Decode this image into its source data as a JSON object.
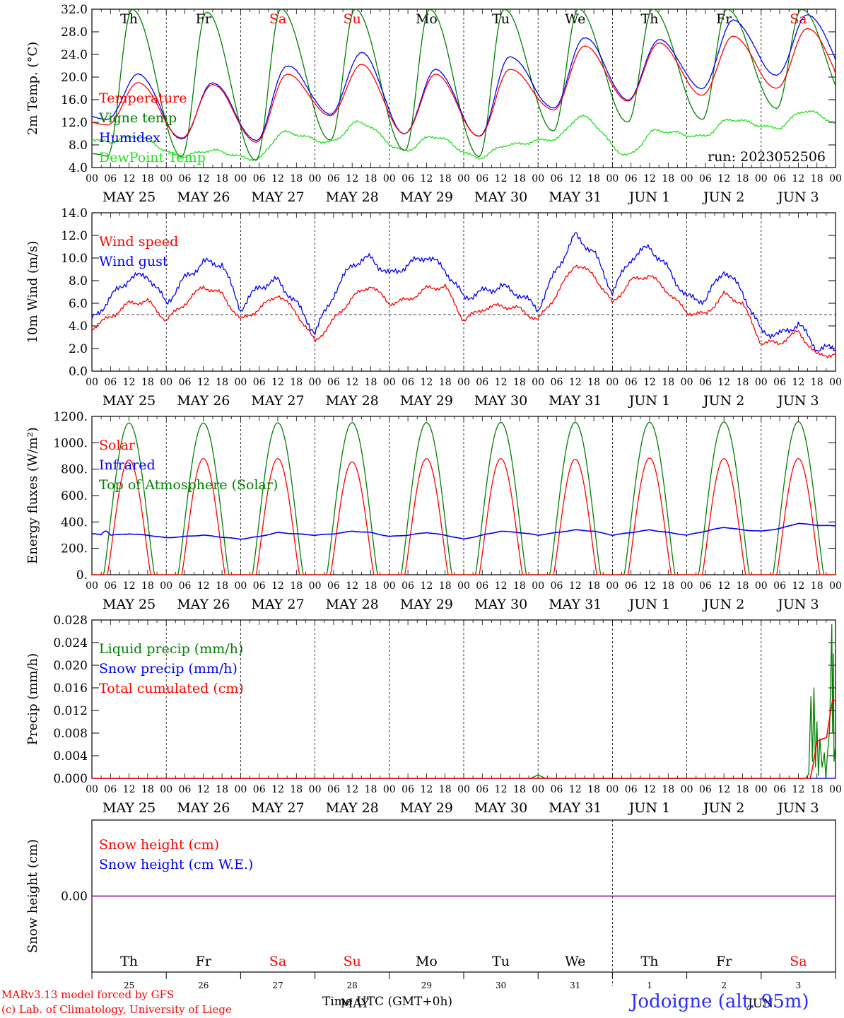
{
  "colors": {
    "red": "#ff0000",
    "green": "#008000",
    "blue": "#0000ff",
    "lightgreen": "#20e020",
    "purple": "#800080",
    "black": "#000000"
  },
  "day_headers": [
    "Th",
    "Fr",
    "Sa",
    "Su",
    "Mo",
    "Tu",
    "We",
    "Th",
    "Fr",
    "Sa"
  ],
  "day_header_colors": [
    "#000000",
    "#000000",
    "#ff0000",
    "#ff0000",
    "#000000",
    "#000000",
    "#000000",
    "#000000",
    "#000000",
    "#ff0000"
  ],
  "hour_labels": [
    "00",
    "06",
    "12",
    "18"
  ],
  "date_labels": [
    "MAY 25",
    "MAY 26",
    "MAY 27",
    "MAY 28",
    "MAY 29",
    "MAY 30",
    "MAY 31",
    "JUN  1",
    "JUN  2",
    "JUN  3"
  ],
  "last_hour_label": "00",
  "snow_panel_days": [
    "25",
    "26",
    "27",
    "28",
    "29",
    "30",
    "31",
    "1",
    "2",
    "3"
  ],
  "snow_axis_month_may": "MAY",
  "snow_axis_month_jun": "JUN",
  "footer": {
    "model": "MARv3.13 model forced by GFS",
    "copyright": "(c) Lab. of Climatology, University of Liege",
    "time_label": "Time UTC (GMT+0h)",
    "station": "Jodoigne (alt. 95m)"
  },
  "chart_data": [
    {
      "type": "line",
      "ylabel": "2m Temp. (°C)",
      "ylim": [
        4,
        32
      ],
      "yticks": [
        "4.0",
        "8.0",
        "12.0",
        "16.0",
        "20.0",
        "24.0",
        "28.0",
        "32.0"
      ],
      "run_label": "run: 2023052506",
      "series": [
        {
          "name": "Temperature",
          "color": "#ff0000",
          "daily_min": [
            11.5,
            9.2,
            8.5,
            13.2,
            10.0,
            9.5,
            14.2,
            15.8,
            16.8,
            18.0
          ],
          "daily_max": [
            19.0,
            18.7,
            20.5,
            22.2,
            20.5,
            21.4,
            25.5,
            26.0,
            27.2,
            28.6
          ]
        },
        {
          "name": "Vigne temp",
          "color": "#008000",
          "daily_min": [
            6.0,
            6.0,
            5.3,
            8.8,
            7.0,
            6.0,
            10.5,
            12.0,
            12.5,
            14.5
          ],
          "daily_max": [
            32.0,
            31.5,
            32.0,
            32.0,
            32.0,
            32.0,
            32.0,
            32.0,
            32.0,
            32.0
          ]
        },
        {
          "name": "Humidex",
          "color": "#0000ff",
          "daily_min": [
            12.5,
            9.0,
            8.8,
            13.5,
            10.0,
            9.5,
            14.5,
            16.0,
            18.0,
            20.3
          ],
          "daily_max": [
            20.5,
            19.0,
            22.0,
            24.3,
            21.3,
            23.6,
            27.0,
            26.6,
            30.0,
            31.0
          ]
        },
        {
          "name": "DewPoint Temp",
          "color": "#20e020",
          "daily_min": [
            8.5,
            6.0,
            5.5,
            8.5,
            7.0,
            5.8,
            9.0,
            6.2,
            9.5,
            11.0
          ],
          "daily_max": [
            9.5,
            7.0,
            10.2,
            12.0,
            9.5,
            8.0,
            13.0,
            10.5,
            12.5,
            14.0
          ]
        }
      ]
    },
    {
      "type": "line",
      "ylabel": "10m Wind (m/s)",
      "ylim": [
        0,
        14
      ],
      "yticks": [
        "0.0",
        "2.0",
        "4.0",
        "6.0",
        "8.0",
        "10.0",
        "12.0",
        "14.0"
      ],
      "reference_line": 5.0,
      "series": [
        {
          "name": "Wind speed",
          "color": "#ff0000",
          "six_hourly": [
            3.8,
            4.8,
            6.0,
            6.2,
            4.5,
            6.0,
            7.5,
            6.8,
            4.5,
            5.5,
            6.8,
            5.2,
            2.6,
            4.5,
            6.5,
            7.6,
            6.0,
            6.3,
            7.3,
            7.5,
            4.5,
            5.5,
            5.8,
            5.5,
            4.5,
            6.8,
            9.5,
            8.5,
            6.0,
            8.0,
            8.5,
            7.0,
            5.2,
            5.0,
            6.8,
            6.0,
            2.5,
            2.5,
            3.5,
            1.4,
            1.5
          ]
        },
        {
          "name": "Wind gust",
          "color": "#0000ff",
          "six_hourly": [
            4.5,
            6.5,
            8.2,
            8.5,
            6.0,
            8.2,
            9.6,
            9.5,
            5.5,
            7.5,
            8.0,
            6.0,
            3.4,
            6.8,
            9.5,
            10.0,
            8.5,
            9.4,
            10.2,
            9.0,
            6.5,
            7.0,
            7.5,
            6.8,
            5.5,
            9.0,
            12.0,
            10.5,
            7.0,
            10.0,
            11.0,
            9.0,
            6.5,
            6.3,
            9.0,
            7.0,
            3.5,
            3.2,
            4.2,
            2.0,
            2.0
          ]
        }
      ]
    },
    {
      "type": "line",
      "ylabel": "Energy fluxes (W/m²)",
      "ylim": [
        0,
        1200
      ],
      "yticks": [
        "0.",
        "200.",
        "400.",
        "600.",
        "800.",
        "1000.",
        "1200."
      ],
      "series": [
        {
          "name": "Solar",
          "color": "#ff0000",
          "daily_peak": [
            870,
            880,
            880,
            855,
            880,
            880,
            875,
            885,
            880,
            880
          ]
        },
        {
          "name": "Infrared",
          "color": "#0000ff",
          "six_hourly": [
            310,
            300,
            310,
            300,
            280,
            290,
            300,
            285,
            270,
            290,
            320,
            310,
            300,
            310,
            330,
            320,
            290,
            300,
            320,
            300,
            270,
            300,
            330,
            320,
            300,
            320,
            340,
            330,
            300,
            320,
            340,
            320,
            300,
            330,
            360,
            340,
            330,
            350,
            390,
            375,
            370
          ]
        },
        {
          "name": "Top of Atmosphere (Solar)",
          "color": "#008000",
          "daily_peak": [
            1150,
            1150,
            1152,
            1153,
            1153,
            1155,
            1155,
            1155,
            1158,
            1160
          ]
        }
      ]
    },
    {
      "type": "line",
      "ylabel": "Precip (mm/h)",
      "ylim": [
        0,
        0.028
      ],
      "yticks": [
        "0.000",
        "0.004",
        "0.008",
        "0.012",
        "0.016",
        "0.020",
        "0.024",
        "0.028"
      ],
      "series": [
        {
          "name": "Liquid precip (mm/h)",
          "color": "#008000",
          "points": [
            [
              5.9,
              0.0
            ],
            [
              6.0,
              0.0006
            ],
            [
              6.1,
              0.0
            ],
            [
              9.6,
              0.0
            ],
            [
              9.64,
              0.0008
            ],
            [
              9.67,
              0.0145
            ],
            [
              9.69,
              0.003
            ],
            [
              9.71,
              0.016
            ],
            [
              9.73,
              0.002
            ],
            [
              9.75,
              0.01
            ],
            [
              9.77,
              0.0005
            ],
            [
              9.79,
              0.007
            ],
            [
              9.82,
              0.002
            ],
            [
              9.85,
              0.0045
            ],
            [
              9.87,
              0.0
            ],
            [
              9.89,
              0.004
            ],
            [
              9.92,
              0.0085
            ],
            [
              9.94,
              0.0205
            ],
            [
              9.95,
              0.0272
            ],
            [
              9.96,
              0.008
            ],
            [
              9.97,
              0.022
            ],
            [
              9.98,
              0.003
            ],
            [
              10.0,
              0.006
            ]
          ]
        },
        {
          "name": "Snow precip (mm/h)",
          "color": "#0000ff",
          "points": [
            [
              0,
              0
            ],
            [
              10,
              0
            ]
          ]
        },
        {
          "name": "Total cumulated (cm)",
          "color": "#ff0000",
          "points": [
            [
              0,
              0
            ],
            [
              9.66,
              0
            ],
            [
              9.7,
              0.0025
            ],
            [
              9.75,
              0.0065
            ],
            [
              9.83,
              0.007
            ],
            [
              9.88,
              0.0072
            ],
            [
              9.93,
              0.0115
            ],
            [
              9.96,
              0.0138
            ],
            [
              10.0,
              0.0138
            ]
          ]
        }
      ]
    },
    {
      "type": "line",
      "ylabel": "Snow height (cm)",
      "ylim": [
        -1,
        1
      ],
      "yticks": [
        "0.00"
      ],
      "series": [
        {
          "name": "Snow height (cm)",
          "color": "#ff0000",
          "points": [
            [
              0,
              0
            ],
            [
              10,
              0
            ]
          ]
        },
        {
          "name": "Snow height (cm W.E.)",
          "color": "#0000ff",
          "points": [
            [
              0,
              0
            ],
            [
              10,
              0
            ]
          ]
        }
      ]
    }
  ]
}
